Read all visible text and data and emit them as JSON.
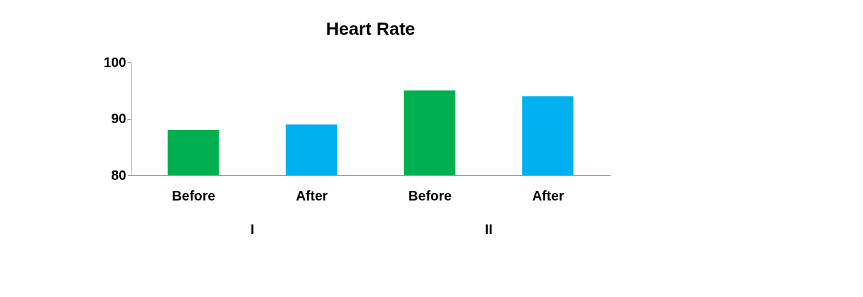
{
  "chart_data": {
    "type": "bar",
    "title": "Heart Rate",
    "categories": [
      "Before",
      "After",
      "Before",
      "After"
    ],
    "values": [
      88,
      89,
      95,
      94
    ],
    "colors": [
      "#00b050",
      "#00b0f0",
      "#00b050",
      "#00b0f0"
    ],
    "ylim": [
      80,
      100
    ],
    "yticks": [
      80,
      90,
      100
    ],
    "grid": false,
    "annotations": [
      "I",
      "II"
    ]
  }
}
